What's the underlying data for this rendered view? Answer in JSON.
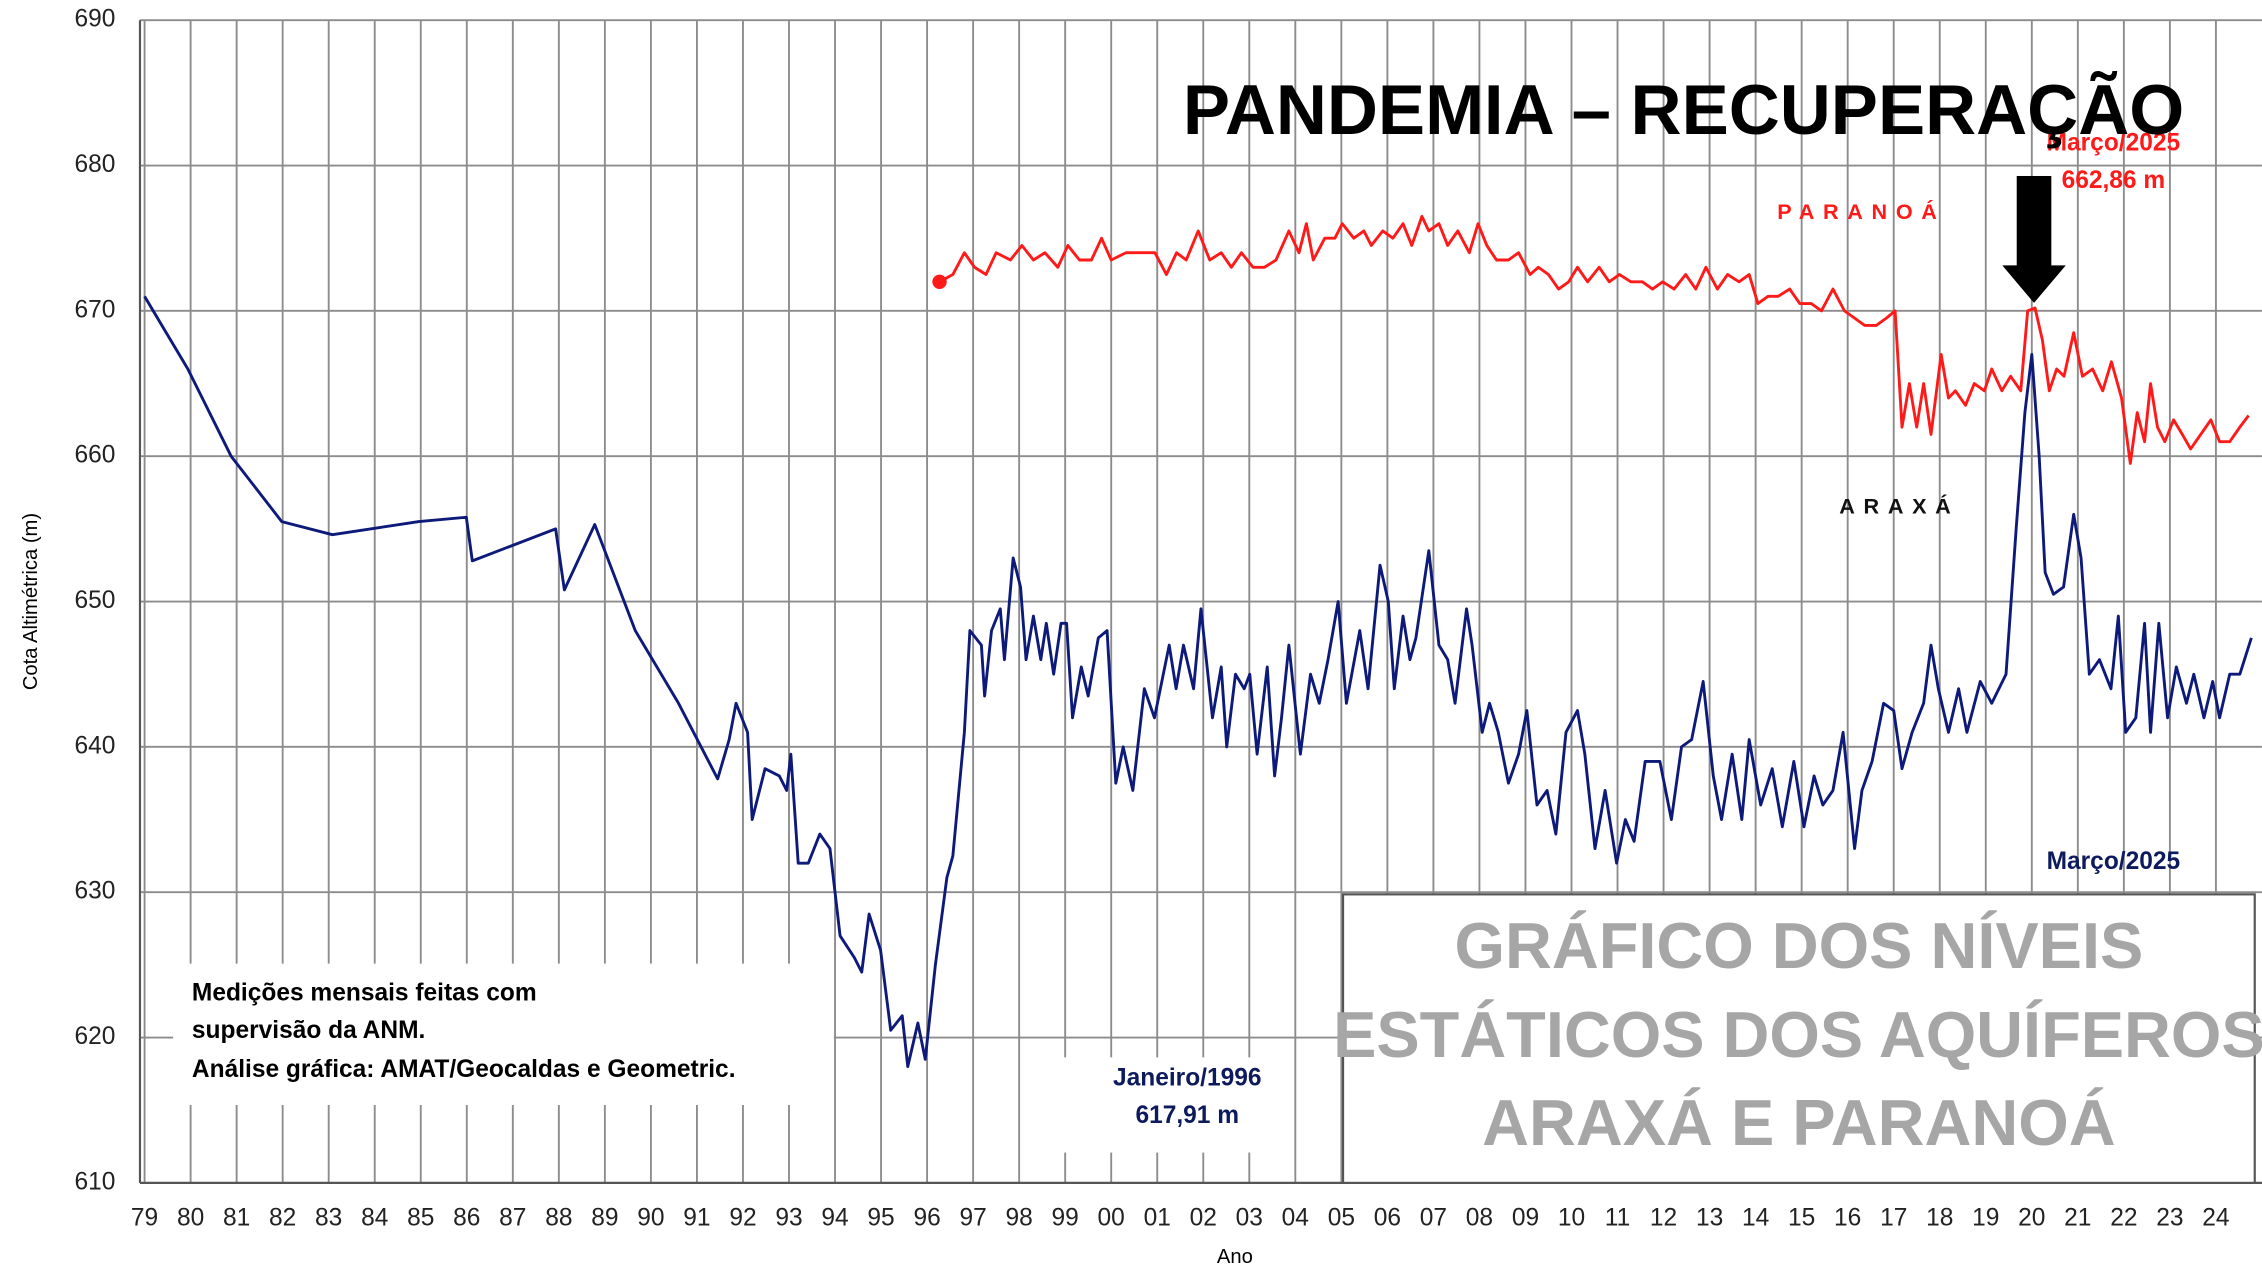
{
  "chart_data": {
    "type": "line",
    "title": "PANDEMIA – RECUPERAÇÃO",
    "xlabel": "Ano",
    "ylabel": "Cota Altimétrica (m)",
    "xlim": [
      -0.1,
      46
    ],
    "ylim": [
      610,
      690
    ],
    "yticks": [
      610,
      620,
      630,
      640,
      650,
      660,
      670,
      680,
      690
    ],
    "xticks": [
      {
        "value": 0,
        "label": "79"
      },
      {
        "value": 1,
        "label": "80"
      },
      {
        "value": 2,
        "label": "81"
      },
      {
        "value": 3,
        "label": "82"
      },
      {
        "value": 4,
        "label": "83"
      },
      {
        "value": 5,
        "label": "84"
      },
      {
        "value": 6,
        "label": "85"
      },
      {
        "value": 7,
        "label": "86"
      },
      {
        "value": 8,
        "label": "87"
      },
      {
        "value": 9,
        "label": "88"
      },
      {
        "value": 10,
        "label": "89"
      },
      {
        "value": 11,
        "label": "90"
      },
      {
        "value": 12,
        "label": "91"
      },
      {
        "value": 13,
        "label": "92"
      },
      {
        "value": 14,
        "label": "93"
      },
      {
        "value": 15,
        "label": "94"
      },
      {
        "value": 16,
        "label": "95"
      },
      {
        "value": 17,
        "label": "96"
      },
      {
        "value": 18,
        "label": "97"
      },
      {
        "value": 19,
        "label": "98"
      },
      {
        "value": 20,
        "label": "99"
      },
      {
        "value": 21,
        "label": "00"
      },
      {
        "value": 22,
        "label": "01"
      },
      {
        "value": 23,
        "label": "02"
      },
      {
        "value": 24,
        "label": "03"
      },
      {
        "value": 25,
        "label": "04"
      },
      {
        "value": 26,
        "label": "05"
      },
      {
        "value": 27,
        "label": "06"
      },
      {
        "value": 28,
        "label": "07"
      },
      {
        "value": 29,
        "label": "08"
      },
      {
        "value": 30,
        "label": "09"
      },
      {
        "value": 31,
        "label": "10"
      },
      {
        "value": 32,
        "label": "11"
      },
      {
        "value": 33,
        "label": "12"
      },
      {
        "value": 34,
        "label": "13"
      },
      {
        "value": 35,
        "label": "14"
      },
      {
        "value": 36,
        "label": "15"
      },
      {
        "value": 37,
        "label": "16"
      },
      {
        "value": 38,
        "label": "17"
      },
      {
        "value": 39,
        "label": "18"
      },
      {
        "value": 40,
        "label": "19"
      },
      {
        "value": 41,
        "label": "20"
      },
      {
        "value": 42,
        "label": "21"
      },
      {
        "value": 43,
        "label": "22"
      },
      {
        "value": 44,
        "label": "23"
      },
      {
        "value": 45,
        "label": "24"
      }
    ],
    "grid": true,
    "series": [
      {
        "name": "ARAXÁ",
        "color": "#0d1a7a",
        "x": [
          0,
          0.94,
          1.88,
          2.98,
          4.08,
          5.96,
          6.99,
          7.12,
          8.93,
          9.12,
          9.78,
          10.66,
          11.6,
          12.45,
          12.7,
          12.85,
          13.1,
          13.2,
          13.48,
          13.79,
          13.95,
          14.04,
          14.2,
          14.42,
          14.67,
          14.89,
          15.11,
          15.42,
          15.58,
          15.74,
          15.99,
          16.21,
          16.46,
          16.58,
          16.8,
          16.96,
          17.18,
          17.43,
          17.56,
          17.81,
          17.93,
          18.18,
          18.25,
          18.4,
          18.59,
          18.68,
          18.87,
          19.03,
          19.15,
          19.31,
          19.47,
          19.59,
          19.75,
          19.91,
          20.03,
          20.16,
          20.35,
          20.5,
          20.72,
          20.91,
          21.1,
          21.26,
          21.47,
          21.72,
          21.94,
          22.26,
          22.41,
          22.57,
          22.79,
          22.95,
          23.2,
          23.39,
          23.51,
          23.7,
          23.89,
          24.01,
          24.17,
          24.39,
          24.55,
          24.7,
          24.86,
          25.11,
          25.33,
          25.52,
          25.71,
          25.93,
          26.11,
          26.4,
          26.58,
          26.84,
          27.02,
          27.15,
          27.34,
          27.49,
          27.62,
          27.9,
          28.12,
          28.31,
          28.47,
          28.72,
          28.84,
          29.06,
          29.22,
          29.41,
          29.63,
          29.85,
          30.03,
          30.25,
          30.47,
          30.66,
          30.88,
          31.13,
          31.29,
          31.51,
          31.73,
          31.98,
          32.17,
          32.36,
          32.6,
          32.92,
          33.17,
          33.39,
          33.61,
          33.86,
          34.08,
          34.26,
          34.49,
          34.7,
          34.86,
          35.11,
          35.36,
          35.58,
          35.83,
          36.05,
          36.27,
          36.46,
          36.68,
          36.9,
          37.15,
          37.31,
          37.53,
          37.78,
          38.0,
          38.18,
          38.4,
          38.65,
          38.81,
          38.97,
          39.19,
          39.41,
          39.59,
          39.88,
          40.13,
          40.44,
          40.66,
          40.85,
          41.0,
          41.16,
          41.29,
          41.47,
          41.69,
          41.91,
          42.07,
          42.25,
          42.47,
          42.72,
          42.88,
          43.04,
          43.26,
          43.45,
          43.58,
          43.76,
          43.95,
          44.14,
          44.36,
          44.52,
          44.74,
          44.93,
          45.08,
          45.3,
          45.52,
          45.77
        ],
        "values": [
          671,
          666,
          660,
          655.5,
          654.6,
          655.5,
          655.8,
          652.8,
          655,
          650.8,
          655.3,
          648,
          643,
          637.8,
          640.5,
          643,
          641,
          635,
          638.5,
          638,
          637,
          639.5,
          632,
          632,
          634,
          633,
          627,
          625.5,
          624.5,
          628.5,
          626,
          620.5,
          621.5,
          618,
          621,
          618.5,
          625,
          631,
          632.5,
          641,
          648,
          647,
          643.5,
          648,
          649.5,
          646,
          653,
          651,
          646,
          649,
          646,
          648.5,
          645,
          648.5,
          648.5,
          642,
          645.5,
          643.5,
          647.5,
          648,
          637.5,
          640,
          637,
          644,
          642,
          647,
          644,
          647,
          644,
          649.5,
          642,
          645.5,
          640,
          645,
          644,
          645,
          639.5,
          645.5,
          638,
          642,
          647,
          639.5,
          645,
          643,
          646,
          650,
          643,
          648,
          644,
          652.5,
          650,
          644,
          649,
          646,
          647.5,
          653.5,
          647,
          646,
          643,
          649.5,
          647,
          641,
          643,
          641,
          637.5,
          639.5,
          642.5,
          636,
          637,
          634,
          641,
          642.5,
          639.5,
          633,
          637,
          632,
          635,
          633.5,
          639,
          639,
          635,
          640,
          640.5,
          644.5,
          638,
          635,
          639.5,
          635,
          640.5,
          636,
          638.5,
          634.5,
          639,
          634.5,
          638,
          636,
          637,
          641,
          633,
          637,
          639,
          643,
          642.5,
          638.5,
          641,
          643,
          647,
          644,
          641,
          644,
          641,
          644.5,
          643,
          645,
          655,
          663,
          667,
          660,
          652,
          650.5,
          651,
          656,
          653,
          645,
          646,
          644,
          649,
          641,
          642,
          648.5,
          641,
          648.5,
          642,
          645.5,
          643,
          645,
          642,
          644.5,
          642,
          645,
          645,
          647.5
        ]
      },
      {
        "name": "PARANOÁ",
        "color": "#ff1a1a",
        "x": [
          17.27,
          17.56,
          17.81,
          18.03,
          18.28,
          18.5,
          18.81,
          19.06,
          19.31,
          19.56,
          19.84,
          20.06,
          20.31,
          20.57,
          20.79,
          21.0,
          21.32,
          21.63,
          21.95,
          22.2,
          22.42,
          22.63,
          22.89,
          23.14,
          23.39,
          23.61,
          23.83,
          24.08,
          24.33,
          24.58,
          24.86,
          25.08,
          25.24,
          25.39,
          25.64,
          25.86,
          26.02,
          26.27,
          26.49,
          26.65,
          26.9,
          27.12,
          27.34,
          27.53,
          27.75,
          27.9,
          28.12,
          28.31,
          28.53,
          28.78,
          28.97,
          29.16,
          29.37,
          29.63,
          29.85,
          30.1,
          30.28,
          30.5,
          30.72,
          30.94,
          31.13,
          31.35,
          31.6,
          31.82,
          32.04,
          32.29,
          32.54,
          32.76,
          32.98,
          33.23,
          33.48,
          33.7,
          33.92,
          34.17,
          34.39,
          34.64,
          34.86,
          35.05,
          35.27,
          35.49,
          35.74,
          35.96,
          36.21,
          36.43,
          36.68,
          36.93,
          37.15,
          37.37,
          37.62,
          37.84,
          38.03,
          38.18,
          38.34,
          38.5,
          38.65,
          38.81,
          39.03,
          39.19,
          39.34,
          39.56,
          39.75,
          39.97,
          40.13,
          40.35,
          40.54,
          40.76,
          40.91,
          41.07,
          41.23,
          41.38,
          41.54,
          41.7,
          41.91,
          42.1,
          42.32,
          42.54,
          42.73,
          42.95,
          43.14,
          43.29,
          43.45,
          43.58,
          43.73,
          43.89,
          44.08,
          44.27,
          44.45,
          44.67,
          44.89,
          45.08,
          45.3,
          45.52,
          45.71
        ],
        "values": [
          672,
          672.5,
          674,
          673,
          672.5,
          674,
          673.5,
          674.5,
          673.5,
          674,
          673,
          674.5,
          673.5,
          673.5,
          675,
          673.5,
          674,
          674,
          674,
          672.5,
          674,
          673.5,
          675.5,
          673.5,
          674,
          673,
          674,
          673,
          673,
          673.5,
          675.5,
          674,
          676,
          673.5,
          675,
          675,
          676,
          675,
          675.5,
          674.5,
          675.5,
          675,
          676,
          674.5,
          676.5,
          675.5,
          676,
          674.5,
          675.5,
          674,
          676,
          674.5,
          673.5,
          673.5,
          674,
          672.5,
          673,
          672.5,
          671.5,
          672,
          673,
          672,
          673,
          672,
          672.5,
          672,
          672,
          671.5,
          672,
          671.5,
          672.5,
          671.5,
          673,
          671.5,
          672.5,
          672,
          672.5,
          670.5,
          671,
          671,
          671.5,
          670.5,
          670.5,
          670,
          671.5,
          670,
          669.5,
          669,
          669,
          669.5,
          670,
          662,
          665,
          662,
          665,
          661.5,
          667,
          664,
          664.5,
          663.5,
          665,
          664.5,
          666,
          664.5,
          665.5,
          664.5,
          670,
          670.2,
          668,
          664.5,
          666,
          665.5,
          668.5,
          665.5,
          666,
          664.5,
          666.5,
          664,
          659.5,
          663,
          661,
          665,
          662,
          661,
          662.5,
          661.5,
          660.5,
          661.5,
          662.5,
          661,
          661,
          662,
          662.8
        ]
      }
    ],
    "annotations": {
      "paranoa_date": "Março/2025",
      "paranoa_level": "662,86 m",
      "araxa_date": "Março/2025",
      "min_date": "Janeiro/1996",
      "min_level": "617,91 m"
    },
    "note": [
      "Medições mensais feitas com",
      "supervisão da ANM.",
      "Análise gráfica: AMAT/Geocaldas e Geometric."
    ],
    "box_title": [
      "GRÁFICO DOS NÍVEIS",
      "ESTÁTICOS DOS AQUÍFEROS",
      "ARAXÁ E PARANOÁ"
    ]
  }
}
